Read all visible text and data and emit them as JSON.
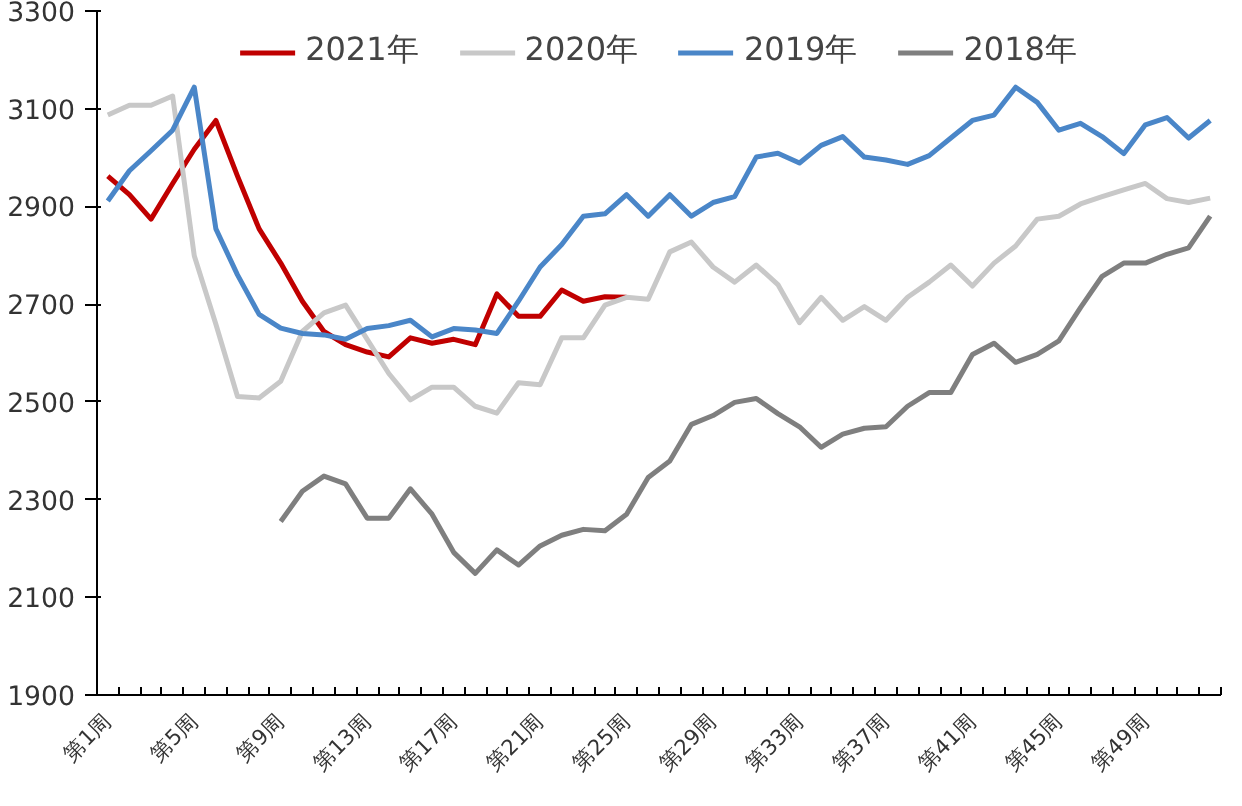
{
  "chart_data": {
    "type": "line",
    "categories": [
      "第1周",
      null,
      null,
      null,
      "第5周",
      null,
      null,
      null,
      "第9周",
      null,
      null,
      null,
      "第13周",
      null,
      null,
      null,
      "第17周",
      null,
      null,
      null,
      "第21周",
      null,
      null,
      null,
      "第25周",
      null,
      null,
      null,
      "第29周",
      null,
      null,
      null,
      "第33周",
      null,
      null,
      null,
      "第37周",
      null,
      null,
      null,
      "第41周",
      null,
      null,
      null,
      "第45周",
      null,
      null,
      null,
      "第49周",
      null,
      null,
      null
    ],
    "series": [
      {
        "name": "2021年",
        "color": "#c00000",
        "values": [
          2962,
          2924,
          2874,
          2947,
          3017,
          3076,
          2962,
          2854,
          2784,
          2706,
          2644,
          2617,
          2602,
          2592,
          2631,
          2620,
          2628,
          2617,
          2721,
          2675,
          2675,
          2729,
          2706,
          2715,
          2714,
          null,
          null,
          null,
          null,
          null,
          null,
          null,
          null,
          null,
          null,
          null,
          null,
          null,
          null,
          null,
          null,
          null,
          null,
          null,
          null,
          null,
          null,
          null,
          null,
          null,
          null,
          null
        ]
      },
      {
        "name": "2020年",
        "color": "#c8c8c8",
        "values": [
          3087,
          3107,
          3107,
          3126,
          2799,
          2659,
          2511,
          2508,
          2542,
          2644,
          2682,
          2698,
          2628,
          2558,
          2504,
          2530,
          2530,
          2491,
          2477,
          2539,
          2535,
          2631,
          2631,
          2698,
          2714,
          2710,
          2807,
          2827,
          2776,
          2745,
          2780,
          2740,
          2662,
          2714,
          2667,
          2695,
          2667,
          2714,
          2745,
          2780,
          2737,
          2784,
          2819,
          2874,
          2880,
          2905,
          2920,
          2934,
          2947,
          2916,
          2908,
          2917
        ]
      },
      {
        "name": "2019年",
        "color": "#4a86c8",
        "values": [
          2911,
          2973,
          3014,
          3056,
          3144,
          2854,
          2760,
          2679,
          2651,
          2640,
          2637,
          2628,
          2650,
          2656,
          2667,
          2633,
          2650,
          2647,
          2640,
          2706,
          2776,
          2822,
          2880,
          2885,
          2924,
          2880,
          2924,
          2880,
          2908,
          2920,
          3001,
          3009,
          2989,
          3025,
          3043,
          3001,
          2995,
          2986,
          3004,
          3040,
          3076,
          3087,
          3144,
          3113,
          3056,
          3070,
          3043,
          3008,
          3067,
          3082,
          3040,
          3076
        ]
      },
      {
        "name": "2018年",
        "color": "#7f7f7f",
        "values": [
          null,
          null,
          null,
          null,
          null,
          null,
          null,
          null,
          2255,
          2317,
          2348,
          2332,
          2262,
          2262,
          2322,
          2270,
          2192,
          2149,
          2197,
          2166,
          2205,
          2227,
          2239,
          2236,
          2270,
          2345,
          2379,
          2454,
          2472,
          2499,
          2507,
          2476,
          2449,
          2407,
          2434,
          2446,
          2449,
          2491,
          2519,
          2519,
          2597,
          2620,
          2581,
          2597,
          2625,
          2693,
          2757,
          2784,
          2784,
          2802,
          2815,
          2880
        ]
      }
    ],
    "ylim": [
      1900,
      3300
    ],
    "yticks": [
      1900,
      2100,
      2300,
      2500,
      2700,
      2900,
      3100,
      3300
    ],
    "grid": false,
    "legend": "top",
    "marker": "none",
    "line_style": "solid"
  }
}
